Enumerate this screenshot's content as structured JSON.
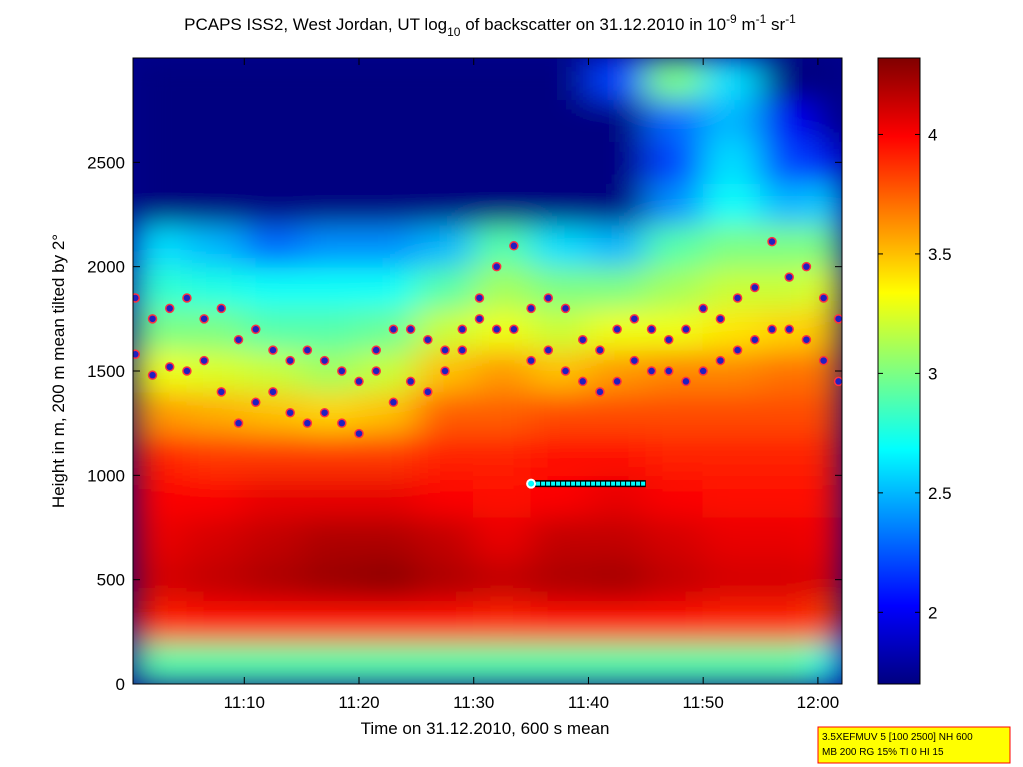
{
  "chart_data": {
    "type": "heatmap",
    "title_parts": [
      "PCAPS ISS2, West Jordan, UT log",
      "10",
      " of backscatter on 31.12.2010 in 10",
      "-9",
      " m",
      "-1",
      " sr",
      "-1"
    ],
    "x_label": "Time on 31.12.2010, 600 s mean",
    "y_label": "Height in m, 200 m mean tilted by 2°",
    "annotation": [
      "3.5XEFMUV 5 [100 2500] NH 600",
      "MB 200 RG 15% TI 0 HI 15"
    ],
    "xlim": [
      660.3,
      722.1
    ],
    "xticks": [
      {
        "value": 670,
        "label": "11:10"
      },
      {
        "value": 680,
        "label": "11:20"
      },
      {
        "value": 690,
        "label": "11:30"
      },
      {
        "value": 700,
        "label": "11:40"
      },
      {
        "value": 710,
        "label": "11:50"
      },
      {
        "value": 720,
        "label": "12:00"
      }
    ],
    "ylim": [
      0,
      3000
    ],
    "yticks": [
      0,
      500,
      1000,
      1500,
      2000,
      2500
    ],
    "clim": [
      1.7,
      4.32
    ],
    "cticks": [
      2,
      2.5,
      3,
      3.5,
      4
    ],
    "colormap": "jet",
    "x_edges": [
      660.3,
      665,
      670,
      675,
      680,
      685,
      690,
      695,
      700,
      705,
      710,
      715,
      720,
      722.1
    ],
    "y_edges": [
      0,
      200,
      400,
      600,
      800,
      1000,
      1200,
      1400,
      1600,
      1800,
      2000,
      2200,
      2400,
      2600,
      2800,
      3000
    ],
    "z": [
      [
        2.9,
        2.9,
        2.9,
        2.9,
        2.9,
        2.9,
        2.9,
        2.9,
        2.9,
        2.9,
        2.9,
        2.9,
        2.7
      ],
      [
        3.9,
        3.95,
        3.95,
        3.95,
        3.95,
        3.95,
        3.9,
        3.95,
        3.95,
        3.95,
        3.9,
        3.9,
        3.8
      ],
      [
        4.1,
        4.15,
        4.2,
        4.25,
        4.28,
        4.2,
        4.15,
        4.2,
        4.22,
        4.15,
        4.1,
        4.1,
        4.05
      ],
      [
        4.05,
        4.1,
        4.15,
        4.2,
        4.2,
        4.15,
        4.05,
        4.15,
        4.15,
        4.1,
        4.05,
        4.05,
        4.0
      ],
      [
        4.0,
        4.0,
        4.05,
        4.05,
        4.05,
        4.0,
        3.95,
        4.0,
        4.05,
        4.0,
        3.95,
        3.95,
        3.95
      ],
      [
        3.9,
        3.85,
        3.85,
        3.85,
        3.85,
        3.9,
        3.9,
        3.95,
        3.95,
        3.9,
        3.9,
        3.9,
        3.9
      ],
      [
        3.6,
        3.55,
        3.5,
        3.45,
        3.5,
        3.75,
        3.75,
        3.8,
        3.8,
        3.8,
        3.8,
        3.8,
        3.8
      ],
      [
        3.3,
        3.25,
        3.2,
        3.1,
        3.2,
        3.5,
        3.6,
        3.5,
        3.6,
        3.65,
        3.65,
        3.7,
        3.7
      ],
      [
        3.0,
        3.0,
        2.9,
        2.9,
        2.95,
        3.2,
        3.3,
        3.2,
        3.3,
        3.3,
        3.4,
        3.45,
        3.5
      ],
      [
        2.8,
        2.75,
        2.7,
        2.7,
        2.7,
        2.9,
        3.1,
        3.0,
        3.0,
        3.1,
        3.2,
        3.2,
        3.3
      ],
      [
        2.6,
        2.5,
        2.3,
        2.4,
        2.4,
        2.5,
        2.9,
        2.6,
        2.5,
        2.9,
        3.0,
        3.0,
        3.0
      ],
      [
        1.7,
        1.7,
        1.7,
        1.7,
        1.7,
        1.7,
        1.7,
        1.7,
        1.7,
        2.4,
        2.7,
        2.5,
        2.6
      ],
      [
        1.7,
        1.7,
        1.7,
        1.7,
        1.7,
        1.7,
        1.7,
        1.7,
        1.7,
        2.2,
        2.6,
        2.2,
        2.0
      ],
      [
        1.7,
        1.7,
        1.7,
        1.7,
        1.7,
        1.7,
        1.7,
        1.7,
        1.7,
        2.3,
        2.5,
        2.0,
        1.7
      ],
      [
        1.7,
        1.7,
        1.7,
        1.7,
        1.7,
        1.7,
        1.7,
        1.7,
        2.2,
        3.0,
        2.6,
        1.7,
        1.7
      ]
    ],
    "series": [
      {
        "type": "scatter",
        "color": "#2020c0",
        "x": [
          660.5,
          662,
          663.5,
          665,
          666.5,
          668,
          669.5,
          671,
          672.5,
          674,
          675.5,
          677,
          678.5,
          680,
          681.5,
          683,
          684.5,
          686,
          687.5,
          689,
          690.5,
          692,
          693.5,
          695,
          696.5,
          698,
          699.5,
          701,
          702.5,
          704,
          705.5,
          707,
          708.5,
          710,
          711.5,
          713,
          714.5,
          716,
          717.5,
          719,
          720.5,
          721.8
        ],
        "y": [
          1850,
          1750,
          1800,
          1850,
          1750,
          1800,
          1650,
          1700,
          1600,
          1550,
          1600,
          1550,
          1500,
          1450,
          1600,
          1700,
          1700,
          1650,
          1600,
          1700,
          1850,
          2000,
          2100,
          1800,
          1850,
          1800,
          1650,
          1600,
          1700,
          1750,
          1700,
          1650,
          1700,
          1800,
          1750,
          1850,
          1900,
          2120,
          1950,
          2000,
          1850,
          1750
        ]
      },
      {
        "type": "scatter",
        "color": "#2020c0",
        "x": [
          660.5,
          662,
          663.5,
          665,
          666.5,
          668,
          669.5,
          671,
          672.5,
          674,
          675.5,
          677,
          678.5,
          680,
          681.5,
          683,
          684.5,
          686,
          687.5,
          689,
          690.5,
          692,
          693.5,
          695,
          696.5,
          698,
          699.5,
          701,
          702.5,
          704,
          705.5,
          707,
          708.5,
          710,
          711.5,
          713,
          714.5,
          716,
          717.5,
          719,
          720.5,
          721.8
        ],
        "y": [
          1580,
          1480,
          1520,
          1500,
          1550,
          1400,
          1250,
          1350,
          1400,
          1300,
          1250,
          1300,
          1250,
          1200,
          1500,
          1350,
          1450,
          1400,
          1500,
          1600,
          1750,
          1700,
          1700,
          1550,
          1600,
          1500,
          1450,
          1400,
          1450,
          1550,
          1500,
          1500,
          1450,
          1500,
          1550,
          1600,
          1650,
          1700,
          1700,
          1650,
          1550,
          1450
        ]
      },
      {
        "type": "line",
        "color": "#00ffff",
        "x": [
          695,
          705
        ],
        "y": [
          960,
          960
        ]
      }
    ]
  }
}
